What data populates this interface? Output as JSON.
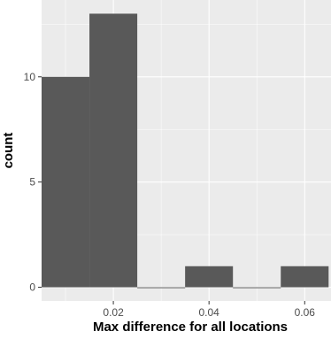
{
  "chart_data": {
    "type": "bar",
    "subtype": "histogram",
    "xlabel": "Max difference for all locations",
    "ylabel": "count",
    "xlim": [
      0.005,
      0.0655
    ],
    "ylim": [
      -0.65,
      13.65
    ],
    "x_ticks": [
      0.02,
      0.04,
      0.06
    ],
    "x_tick_labels": [
      "0.02",
      "0.04",
      "0.06"
    ],
    "y_ticks": [
      0,
      5,
      10
    ],
    "y_tick_labels": [
      "0",
      "5",
      "10"
    ],
    "bins": [
      {
        "x0": 0.005,
        "x1": 0.015,
        "count": 10
      },
      {
        "x0": 0.015,
        "x1": 0.025,
        "count": 13
      },
      {
        "x0": 0.025,
        "x1": 0.035,
        "count": 0
      },
      {
        "x0": 0.035,
        "x1": 0.045,
        "count": 1
      },
      {
        "x0": 0.045,
        "x1": 0.055,
        "count": 0
      },
      {
        "x0": 0.055,
        "x1": 0.065,
        "count": 1
      }
    ],
    "grid": true,
    "legend": "none",
    "colors": {
      "bar": "#595959",
      "panel_background": "#ebebeb",
      "grid_major": "#ffffff",
      "tick_label": "#4d4d4d",
      "axis_title": "#000000"
    }
  }
}
